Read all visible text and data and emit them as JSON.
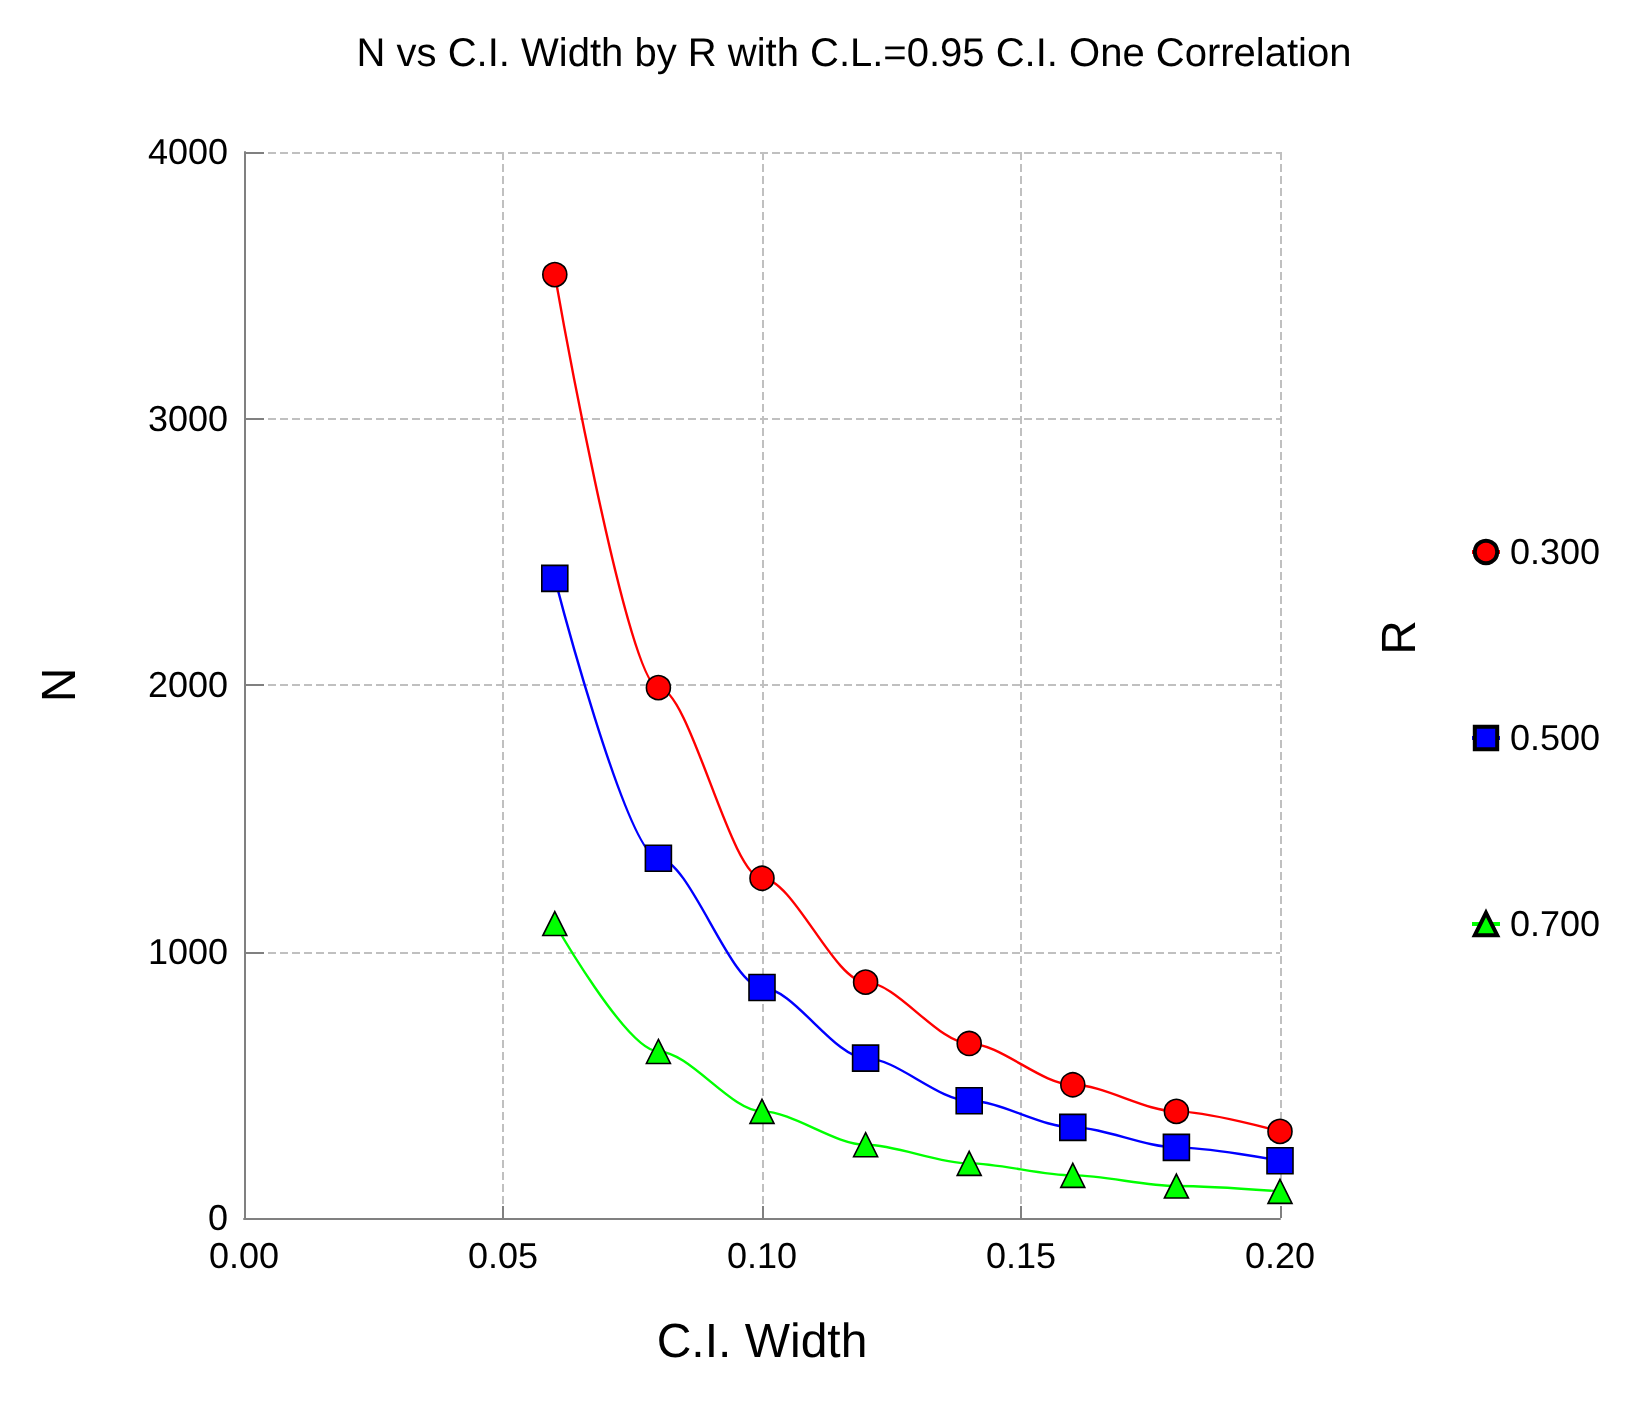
{
  "chart_data": {
    "type": "line",
    "title": "N vs C.I. Width by R with C.L.=0.95 C.I. One Correlation",
    "xlabel": "C.I. Width",
    "ylabel": "N",
    "legend_title": "R",
    "x": [
      0.06,
      0.08,
      0.1,
      0.12,
      0.14,
      0.16,
      0.18,
      0.2
    ],
    "series": [
      {
        "name": "0.300",
        "color": "#ff0000",
        "marker": "circle",
        "values": [
          3540,
          1990,
          1275,
          885,
          655,
          500,
          400,
          325
        ]
      },
      {
        "name": "0.500",
        "color": "#0000ff",
        "marker": "square",
        "values": [
          2400,
          1350,
          865,
          600,
          440,
          340,
          265,
          215
        ]
      },
      {
        "name": "0.700",
        "color": "#00ff00",
        "marker": "triangle",
        "values": [
          1105,
          625,
          400,
          275,
          205,
          160,
          120,
          100
        ]
      }
    ],
    "xlim": [
      0,
      0.2
    ],
    "xticks": [
      {
        "value": 0,
        "label": "0.00"
      },
      {
        "value": 0.05,
        "label": "0.05"
      },
      {
        "value": 0.1,
        "label": "0.10"
      },
      {
        "value": 0.15,
        "label": "0.15"
      },
      {
        "value": 0.2,
        "label": "0.20"
      }
    ],
    "ylim": [
      0,
      4000
    ],
    "yticks": [
      0,
      1000,
      2000,
      3000,
      4000
    ],
    "grid": true,
    "legend": "right"
  }
}
